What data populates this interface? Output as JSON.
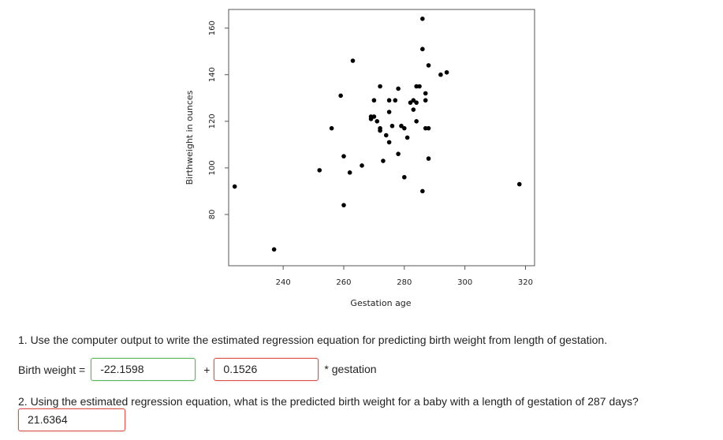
{
  "chart_data": {
    "type": "scatter",
    "xlabel": "Gestation age",
    "ylabel": "Birthweight in ounces",
    "xlim": [
      222,
      323
    ],
    "ylim": [
      58,
      168
    ],
    "xticks": [
      240,
      260,
      280,
      300,
      320
    ],
    "yticks": [
      80,
      100,
      120,
      140,
      160
    ],
    "points": [
      [
        224,
        92
      ],
      [
        237,
        65
      ],
      [
        252,
        99
      ],
      [
        256,
        117
      ],
      [
        259,
        131
      ],
      [
        260,
        84
      ],
      [
        260,
        105
      ],
      [
        262,
        98
      ],
      [
        263,
        146
      ],
      [
        266,
        101
      ],
      [
        269,
        122
      ],
      [
        269,
        121
      ],
      [
        270,
        129
      ],
      [
        270,
        122
      ],
      [
        271,
        120
      ],
      [
        272,
        135
      ],
      [
        272,
        117
      ],
      [
        272,
        116
      ],
      [
        273,
        103
      ],
      [
        274,
        114
      ],
      [
        275,
        124
      ],
      [
        275,
        129
      ],
      [
        275,
        111
      ],
      [
        276,
        118
      ],
      [
        277,
        129
      ],
      [
        278,
        134
      ],
      [
        278,
        106
      ],
      [
        279,
        118
      ],
      [
        280,
        117
      ],
      [
        280,
        96
      ],
      [
        281,
        113
      ],
      [
        282,
        128
      ],
      [
        283,
        125
      ],
      [
        283,
        129
      ],
      [
        284,
        128
      ],
      [
        284,
        135
      ],
      [
        284,
        120
      ],
      [
        285,
        135
      ],
      [
        286,
        164
      ],
      [
        286,
        151
      ],
      [
        286,
        90
      ],
      [
        287,
        132
      ],
      [
        287,
        129
      ],
      [
        287,
        117
      ],
      [
        288,
        117
      ],
      [
        288,
        144
      ],
      [
        288,
        104
      ],
      [
        292,
        140
      ],
      [
        294,
        141
      ],
      [
        318,
        93
      ]
    ],
    "regression_line": {
      "intercept": -22.1598,
      "slope": 0.1526
    }
  },
  "questions": {
    "q1": "1. Use the computer output to write the estimated regression equation for predicting birth weight from length of gestation.",
    "q2": "2. Using the estimated regression equation, what is the predicted birth weight for a baby with a length of gestation of 287 days?"
  },
  "equation": {
    "label": "Birth weight =",
    "intercept_value": "-22.1598",
    "plus": "+",
    "slope_value": "0.1526",
    "suffix": "* gestation"
  },
  "answer2": {
    "value": "21.6364"
  },
  "colors": {
    "correct": "#5cb85c",
    "wrong": "#d9534f"
  }
}
